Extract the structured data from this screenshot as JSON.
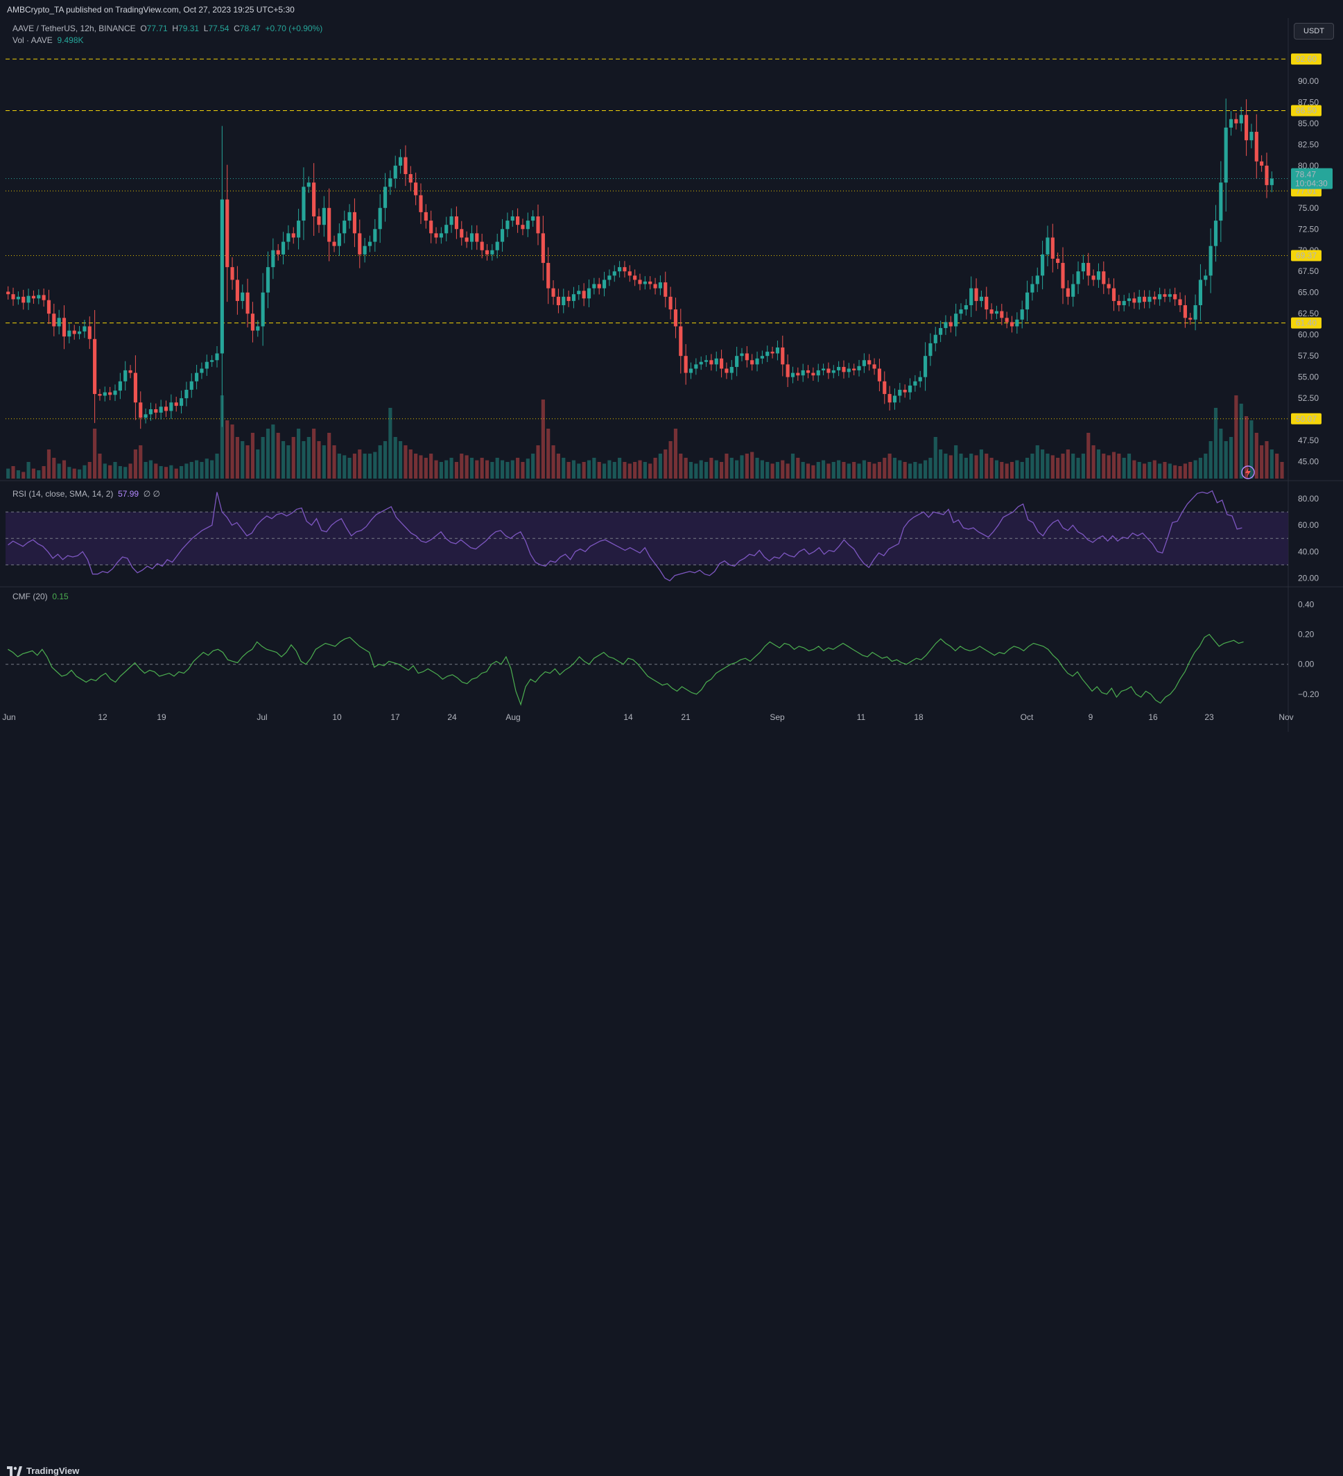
{
  "header": {
    "publish": "AMBCrypto_TA published on TradingView.com, Oct 27, 2023 19:25 UTC+5:30"
  },
  "legend": {
    "symbol": "AAVE / TetherUS, 12h, BINANCE",
    "o_label": "O",
    "o": "77.71",
    "h_label": "H",
    "h": "79.31",
    "l_label": "L",
    "l": "77.54",
    "c_label": "C",
    "c": "78.47",
    "change": "+0.70 (+0.90%)",
    "vol_label": "Vol · AAVE",
    "vol": "9.498K"
  },
  "currency_button": "USDT",
  "rsi": {
    "label": "RSI (14, close, SMA, 14, 2)",
    "value": "57.99",
    "extra": "∅ ∅"
  },
  "cmf": {
    "label": "CMF (20)",
    "value": "0.15"
  },
  "brand": "TradingView",
  "colors": {
    "background": "#131722",
    "up": "#26a69a",
    "down": "#ef5350",
    "level_dash": "#f5d50a",
    "level_dot": "#e6c200",
    "rsi_line": "#7e57c2",
    "rsi_band": "#2a1f4a",
    "cmf_line": "#4caf50"
  },
  "chart_data": [
    {
      "type": "candlestick",
      "title": "",
      "ylim": [
        43.0,
        94.5
      ],
      "y_ticks": [
        "45.00",
        "47.50",
        "50.00",
        "52.50",
        "55.00",
        "57.50",
        "60.00",
        "62.50",
        "65.00",
        "67.50",
        "70.00",
        "72.50",
        "75.00",
        "77.50",
        "80.00",
        "82.50",
        "85.00",
        "87.50",
        "90.00"
      ],
      "x_ticks": [
        "Jun",
        "12",
        "19",
        "Jul",
        "10",
        "17",
        "24",
        "Aug",
        "14",
        "21",
        "Sep",
        "11",
        "18",
        "Oct",
        "9",
        "16",
        "23",
        "Nov"
      ],
      "horizontal_levels": [
        {
          "value": 92.6,
          "label": "92.60",
          "style": "dashed"
        },
        {
          "value": 86.5,
          "label": "86.50",
          "style": "dashed"
        },
        {
          "value": 77.01,
          "label": "77.01",
          "style": "dotted"
        },
        {
          "value": 69.37,
          "label": "69.37",
          "style": "dotted"
        },
        {
          "value": 61.4,
          "label": "61.40",
          "style": "dashed"
        },
        {
          "value": 50.07,
          "label": "50.07",
          "style": "dotted"
        }
      ],
      "last_price": {
        "value": 78.47,
        "label": "78.47",
        "countdown": "10:04:30"
      },
      "closes": [
        64.8,
        64.2,
        64.5,
        63.8,
        64.6,
        64.3,
        64.7,
        64.1,
        62.5,
        61.0,
        62.0,
        59.8,
        60.5,
        60.1,
        60.4,
        61.0,
        59.5,
        53.0,
        52.8,
        53.2,
        52.9,
        53.4,
        54.5,
        55.8,
        55.5,
        52.0,
        50.2,
        50.6,
        51.2,
        50.8,
        51.5,
        51.0,
        52.0,
        51.6,
        52.5,
        53.5,
        54.5,
        55.5,
        56.0,
        56.8,
        57.0,
        57.8,
        76.0,
        68.0,
        66.5,
        64.0,
        65.0,
        62.5,
        60.5,
        61.0,
        65.0,
        68.0,
        70.0,
        69.5,
        71.0,
        72.0,
        71.5,
        73.5,
        77.5,
        78.0,
        74.0,
        73.0,
        75.0,
        71.0,
        70.5,
        72.0,
        73.5,
        74.5,
        72.0,
        69.5,
        70.5,
        71.0,
        72.5,
        75.0,
        77.5,
        78.5,
        80.0,
        81.0,
        79.0,
        78.0,
        76.5,
        74.5,
        73.5,
        72.0,
        71.5,
        72.0,
        73.0,
        74.0,
        72.5,
        71.5,
        71.0,
        72.0,
        71.0,
        70.0,
        69.5,
        70.0,
        71.0,
        72.5,
        73.5,
        74.0,
        73.0,
        72.5,
        73.5,
        74.0,
        72.0,
        68.5,
        65.5,
        64.5,
        63.5,
        64.5,
        64.0,
        64.8,
        65.2,
        64.3,
        65.5,
        66.0,
        65.5,
        66.5,
        67.0,
        67.5,
        68.0,
        67.5,
        67.0,
        66.5,
        66.0,
        66.3,
        66.0,
        65.5,
        66.2,
        64.5,
        63.0,
        61.0,
        57.5,
        55.5,
        56.0,
        56.5,
        56.8,
        57.0,
        56.5,
        57.2,
        56.0,
        55.5,
        56.2,
        57.5,
        57.8,
        57.0,
        56.5,
        57.2,
        57.5,
        58.0,
        57.8,
        58.5,
        56.5,
        55.0,
        55.5,
        55.2,
        55.8,
        55.5,
        55.2,
        55.8,
        56.0,
        55.5,
        55.8,
        56.2,
        55.6,
        56.0,
        55.8,
        56.3,
        57.0,
        56.5,
        56.0,
        54.5,
        53.0,
        52.0,
        52.8,
        53.5,
        53.2,
        54.0,
        54.5,
        55.0,
        57.5,
        59.0,
        60.0,
        60.8,
        61.5,
        61.0,
        62.5,
        63.0,
        63.5,
        65.5,
        64.0,
        64.5,
        63.0,
        62.5,
        62.8,
        62.0,
        61.5,
        61.0,
        61.8,
        63.0,
        65.0,
        66.0,
        67.0,
        69.5,
        71.5,
        69.0,
        68.5,
        65.5,
        64.5,
        66.0,
        67.5,
        68.5,
        67.0,
        66.5,
        67.5,
        66.0,
        65.5,
        64.0,
        63.5,
        64.0,
        64.3,
        63.8,
        64.5,
        63.9,
        64.5,
        64.2,
        64.8,
        64.5,
        64.8,
        64.2,
        63.5,
        62.0,
        61.8,
        63.5,
        66.5,
        67.0,
        70.5,
        73.5,
        78.0,
        84.5,
        85.5,
        85.0,
        86.0,
        83.0,
        84.0,
        80.5,
        80.0,
        77.7,
        78.47
      ],
      "volume_relative": [
        0.12,
        0.15,
        0.1,
        0.08,
        0.2,
        0.12,
        0.1,
        0.15,
        0.35,
        0.25,
        0.18,
        0.22,
        0.14,
        0.12,
        0.11,
        0.16,
        0.2,
        0.6,
        0.3,
        0.18,
        0.16,
        0.2,
        0.15,
        0.14,
        0.18,
        0.35,
        0.4,
        0.2,
        0.22,
        0.18,
        0.15,
        0.14,
        0.16,
        0.12,
        0.15,
        0.18,
        0.2,
        0.22,
        0.2,
        0.24,
        0.22,
        0.3,
        1.0,
        0.7,
        0.65,
        0.5,
        0.45,
        0.4,
        0.55,
        0.35,
        0.5,
        0.6,
        0.65,
        0.55,
        0.45,
        0.4,
        0.5,
        0.6,
        0.45,
        0.5,
        0.6,
        0.45,
        0.4,
        0.55,
        0.4,
        0.3,
        0.28,
        0.25,
        0.3,
        0.35,
        0.3,
        0.3,
        0.32,
        0.4,
        0.45,
        0.85,
        0.5,
        0.45,
        0.4,
        0.35,
        0.3,
        0.28,
        0.25,
        0.3,
        0.22,
        0.2,
        0.22,
        0.25,
        0.2,
        0.3,
        0.28,
        0.25,
        0.22,
        0.25,
        0.22,
        0.2,
        0.25,
        0.22,
        0.2,
        0.22,
        0.25,
        0.2,
        0.24,
        0.3,
        0.4,
        0.95,
        0.6,
        0.4,
        0.3,
        0.25,
        0.2,
        0.22,
        0.18,
        0.2,
        0.22,
        0.25,
        0.2,
        0.18,
        0.22,
        0.2,
        0.25,
        0.2,
        0.18,
        0.2,
        0.22,
        0.2,
        0.18,
        0.25,
        0.3,
        0.35,
        0.45,
        0.6,
        0.3,
        0.25,
        0.2,
        0.18,
        0.22,
        0.2,
        0.25,
        0.22,
        0.2,
        0.3,
        0.25,
        0.22,
        0.28,
        0.3,
        0.32,
        0.25,
        0.22,
        0.2,
        0.18,
        0.2,
        0.22,
        0.18,
        0.3,
        0.25,
        0.2,
        0.18,
        0.16,
        0.2,
        0.22,
        0.18,
        0.2,
        0.22,
        0.2,
        0.18,
        0.2,
        0.18,
        0.22,
        0.2,
        0.18,
        0.2,
        0.25,
        0.3,
        0.25,
        0.22,
        0.2,
        0.18,
        0.2,
        0.18,
        0.22,
        0.25,
        0.5,
        0.35,
        0.3,
        0.28,
        0.4,
        0.3,
        0.25,
        0.3,
        0.28,
        0.35,
        0.3,
        0.25,
        0.22,
        0.2,
        0.18,
        0.2,
        0.22,
        0.2,
        0.25,
        0.3,
        0.4,
        0.35,
        0.3,
        0.28,
        0.25,
        0.3,
        0.35,
        0.3,
        0.25,
        0.3,
        0.55,
        0.4,
        0.35,
        0.3,
        0.28,
        0.32,
        0.3,
        0.25,
        0.3,
        0.22,
        0.2,
        0.18,
        0.2,
        0.22,
        0.18,
        0.2,
        0.18,
        0.16,
        0.15,
        0.18,
        0.2,
        0.22,
        0.25,
        0.3,
        0.45,
        0.85,
        0.6,
        0.45,
        0.5,
        1.0,
        0.9,
        0.75,
        0.7,
        0.55,
        0.4,
        0.45,
        0.35,
        0.3,
        0.2
      ]
    },
    {
      "type": "line",
      "name": "RSI (14, close, SMA, 14, 2)",
      "ylim": [
        15,
        90
      ],
      "y_ticks": [
        "20.00",
        "40.00",
        "60.00",
        "80.00"
      ],
      "bands": [
        30,
        50,
        70
      ],
      "values": [
        45,
        48,
        46,
        44,
        47,
        49,
        46,
        44,
        40,
        35,
        38,
        34,
        37,
        36,
        37,
        40,
        34,
        23,
        23,
        25,
        24,
        27,
        32,
        36,
        35,
        28,
        24,
        26,
        29,
        27,
        31,
        29,
        34,
        32,
        37,
        42,
        46,
        50,
        53,
        56,
        58,
        60,
        85,
        70,
        66,
        60,
        62,
        57,
        52,
        54,
        60,
        64,
        67,
        65,
        68,
        69,
        67,
        69,
        72,
        73,
        63,
        60,
        65,
        56,
        55,
        60,
        63,
        65,
        58,
        52,
        55,
        56,
        59,
        64,
        68,
        70,
        72,
        74,
        66,
        62,
        58,
        54,
        52,
        48,
        47,
        49,
        52,
        55,
        50,
        47,
        46,
        49,
        46,
        43,
        42,
        45,
        48,
        52,
        55,
        56,
        52,
        50,
        53,
        55,
        48,
        38,
        32,
        30,
        29,
        33,
        32,
        36,
        38,
        34,
        40,
        42,
        40,
        44,
        46,
        48,
        49,
        47,
        45,
        43,
        41,
        43,
        41,
        39,
        43,
        36,
        31,
        26,
        20,
        18,
        22,
        23,
        24,
        25,
        24,
        26,
        23,
        22,
        25,
        31,
        33,
        30,
        29,
        33,
        35,
        38,
        37,
        41,
        36,
        33,
        36,
        35,
        39,
        37,
        36,
        40,
        42,
        38,
        40,
        43,
        38,
        41,
        40,
        44,
        49,
        45,
        42,
        36,
        31,
        28,
        34,
        39,
        37,
        42,
        44,
        46,
        58,
        63,
        66,
        68,
        70,
        66,
        70,
        69,
        68,
        72,
        62,
        64,
        58,
        57,
        58,
        55,
        53,
        51,
        55,
        60,
        66,
        68,
        70,
        74,
        76,
        64,
        62,
        55,
        52,
        58,
        62,
        64,
        58,
        56,
        60,
        55,
        53,
        49,
        47,
        50,
        52,
        48,
        52,
        48,
        51,
        50,
        54,
        52,
        54,
        50,
        46,
        40,
        39,
        50,
        62,
        63,
        70,
        76,
        80,
        84,
        85,
        84,
        86,
        77,
        79,
        68,
        67,
        57,
        57.99
      ]
    },
    {
      "type": "line",
      "name": "CMF (20)",
      "ylim": [
        -0.28,
        0.5
      ],
      "y_ticks": [
        "−0.20",
        "0.00",
        "0.20",
        "0.40"
      ],
      "values": [
        0.1,
        0.08,
        0.05,
        0.07,
        0.08,
        0.09,
        0.06,
        0.1,
        0.05,
        -0.02,
        -0.05,
        -0.08,
        -0.07,
        -0.04,
        -0.08,
        -0.1,
        -0.12,
        -0.1,
        -0.11,
        -0.08,
        -0.06,
        -0.1,
        -0.12,
        -0.08,
        -0.05,
        -0.02,
        0.01,
        -0.03,
        -0.06,
        -0.04,
        -0.05,
        -0.08,
        -0.07,
        -0.06,
        -0.08,
        -0.05,
        -0.06,
        -0.03,
        0.02,
        0.05,
        0.08,
        0.06,
        0.09,
        0.1,
        0.08,
        0.03,
        0.02,
        0.01,
        0.05,
        0.08,
        0.1,
        0.15,
        0.12,
        0.1,
        0.09,
        0.08,
        0.05,
        0.08,
        0.13,
        0.09,
        0.02,
        0.0,
        0.04,
        0.1,
        0.12,
        0.14,
        0.13,
        0.12,
        0.15,
        0.17,
        0.18,
        0.15,
        0.12,
        0.1,
        0.08,
        -0.02,
        0.0,
        -0.01,
        0.02,
        0.01,
        0.0,
        -0.02,
        -0.04,
        -0.01,
        -0.06,
        -0.05,
        -0.03,
        -0.05,
        -0.07,
        -0.1,
        -0.08,
        -0.07,
        -0.09,
        -0.12,
        -0.13,
        -0.1,
        -0.09,
        -0.06,
        -0.05,
        0.0,
        0.02,
        0.0,
        0.05,
        -0.03,
        -0.18,
        -0.27,
        -0.15,
        -0.1,
        -0.12,
        -0.08,
        -0.05,
        -0.06,
        -0.03,
        -0.07,
        -0.04,
        -0.02,
        0.01,
        0.05,
        0.02,
        0.0,
        0.04,
        0.06,
        0.08,
        0.05,
        0.04,
        0.02,
        0.0,
        0.04,
        0.03,
        0.0,
        -0.04,
        -0.08,
        -0.1,
        -0.12,
        -0.14,
        -0.13,
        -0.16,
        -0.18,
        -0.15,
        -0.17,
        -0.19,
        -0.2,
        -0.17,
        -0.12,
        -0.1,
        -0.06,
        -0.04,
        -0.02,
        0.0,
        0.01,
        0.03,
        0.04,
        0.02,
        0.05,
        0.08,
        0.12,
        0.15,
        0.13,
        0.11,
        0.14,
        0.13,
        0.1,
        0.12,
        0.11,
        0.09,
        0.1,
        0.12,
        0.09,
        0.11,
        0.1,
        0.12,
        0.14,
        0.12,
        0.1,
        0.08,
        0.06,
        0.05,
        0.08,
        0.06,
        0.04,
        0.05,
        0.02,
        0.03,
        0.01,
        0.0,
        0.02,
        0.04,
        0.03,
        0.06,
        0.1,
        0.14,
        0.17,
        0.14,
        0.12,
        0.09,
        0.12,
        0.1,
        0.09,
        0.1,
        0.12,
        0.1,
        0.08,
        0.06,
        0.08,
        0.07,
        0.1,
        0.12,
        0.11,
        0.09,
        0.12,
        0.14,
        0.13,
        0.12,
        0.1,
        0.06,
        0.03,
        -0.02,
        -0.06,
        -0.08,
        -0.05,
        -0.1,
        -0.14,
        -0.18,
        -0.15,
        -0.19,
        -0.2,
        -0.16,
        -0.22,
        -0.18,
        -0.17,
        -0.15,
        -0.2,
        -0.22,
        -0.18,
        -0.2,
        -0.24,
        -0.26,
        -0.22,
        -0.2,
        -0.16,
        -0.1,
        -0.05,
        0.02,
        0.08,
        0.12,
        0.18,
        0.2,
        0.16,
        0.12,
        0.14,
        0.15,
        0.16,
        0.14,
        0.15
      ]
    }
  ]
}
